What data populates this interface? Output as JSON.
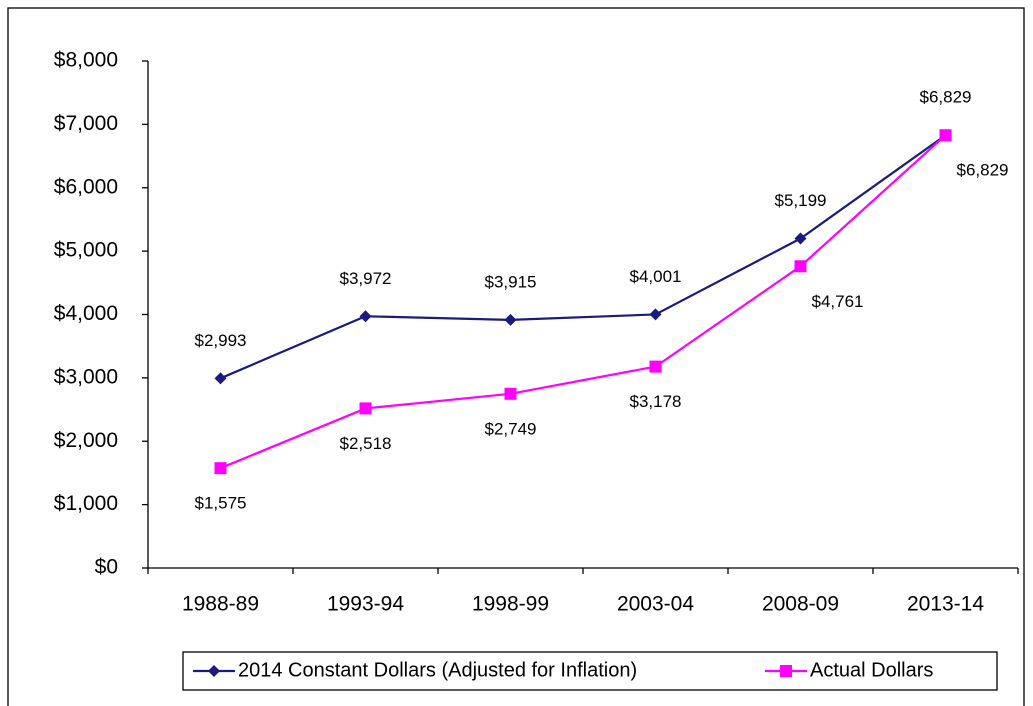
{
  "chart_data": {
    "type": "line",
    "categories": [
      "1988-89",
      "1993-94",
      "1998-99",
      "2003-04",
      "2008-09",
      "2013-14"
    ],
    "series": [
      {
        "name": "2014 Constant Dollars (Adjusted for Inflation)",
        "color": "#1a1a80",
        "marker": "diamond",
        "values": [
          2993,
          3972,
          3915,
          4001,
          5199,
          6829
        ],
        "value_labels": [
          "$2,993",
          "$3,972",
          "$3,915",
          "$4,001",
          "$5,199",
          "$6,829"
        ]
      },
      {
        "name": "Actual Dollars",
        "color": "#ff00ff",
        "marker": "square",
        "values": [
          1575,
          2518,
          2749,
          3178,
          4761,
          6829
        ],
        "value_labels": [
          "$1,575",
          "$2,518",
          "$2,749",
          "$3,178",
          "$4,761",
          "$6,829"
        ]
      }
    ],
    "ylim": [
      0,
      8000
    ],
    "yticks": [
      {
        "value": 0,
        "label": "$0"
      },
      {
        "value": 1000,
        "label": "$1,000"
      },
      {
        "value": 2000,
        "label": "$2,000"
      },
      {
        "value": 3000,
        "label": "$3,000"
      },
      {
        "value": 4000,
        "label": "$4,000"
      },
      {
        "value": 5000,
        "label": "$5,000"
      },
      {
        "value": 6000,
        "label": "$6,000"
      },
      {
        "value": 7000,
        "label": "$7,000"
      },
      {
        "value": 8000,
        "label": "$8,000"
      }
    ],
    "grid": false,
    "legend": "bottom"
  }
}
